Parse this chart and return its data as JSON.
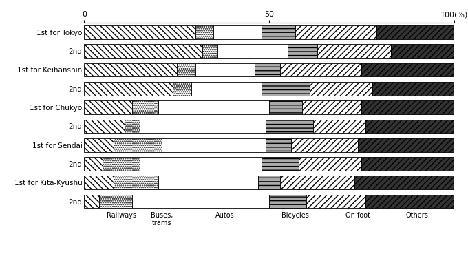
{
  "rows": [
    {
      "label": "1st for Tokyo",
      "values": [
        30,
        5,
        13,
        9,
        22,
        21
      ]
    },
    {
      "label": "2nd",
      "values": [
        32,
        4,
        19,
        8,
        20,
        17
      ]
    },
    {
      "label": "1st for Keihanshin",
      "values": [
        25,
        5,
        16,
        7,
        22,
        25
      ]
    },
    {
      "label": "2nd",
      "values": [
        24,
        5,
        19,
        13,
        17,
        22
      ]
    },
    {
      "label": "1st for Chukyo",
      "values": [
        13,
        7,
        30,
        9,
        16,
        25
      ]
    },
    {
      "label": "2nd",
      "values": [
        11,
        4,
        34,
        13,
        14,
        24
      ]
    },
    {
      "label": "1st for Sendai",
      "values": [
        8,
        13,
        28,
        7,
        18,
        26
      ]
    },
    {
      "label": "2nd",
      "values": [
        5,
        10,
        33,
        10,
        17,
        25
      ]
    },
    {
      "label": "1st for Kita-Kyushu",
      "values": [
        8,
        12,
        27,
        6,
        20,
        27
      ]
    },
    {
      "label": "2nd",
      "values": [
        4,
        9,
        37,
        10,
        16,
        24
      ]
    }
  ],
  "xlim": [
    0,
    100
  ],
  "bar_height": 0.72,
  "figsize": [
    6.8,
    3.69
  ],
  "dpi": 100,
  "label_x_data": [
    10,
    21,
    38,
    57,
    74,
    90
  ],
  "label_texts": [
    "Railways",
    "Buses,\ntrams",
    "Autos",
    "Bicycles",
    "On foot",
    "Others"
  ]
}
